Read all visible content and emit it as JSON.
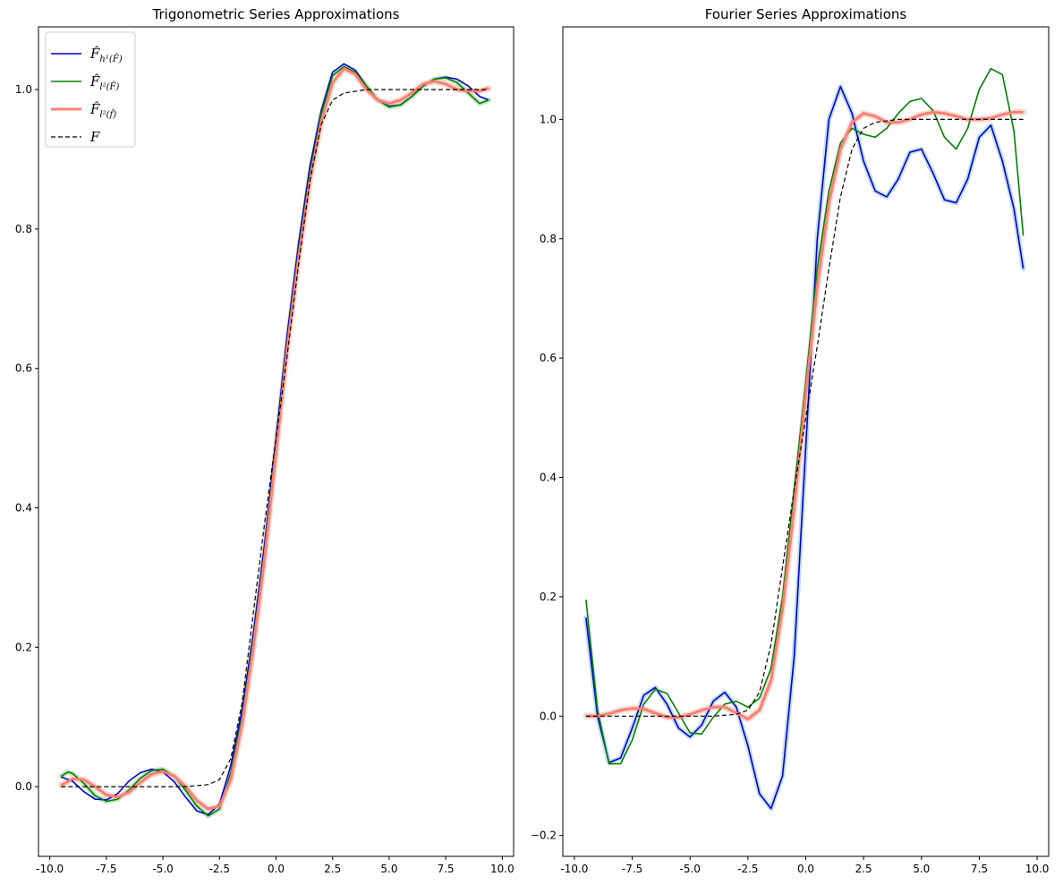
{
  "chart_data": [
    {
      "type": "line",
      "title": "Trigonometric Series Approximations",
      "xlabel": "",
      "ylabel": "",
      "xlim": [
        -10.5,
        10.5
      ],
      "ylim": [
        -0.1,
        1.09
      ],
      "xticks": [
        -10.0,
        -7.5,
        -5.0,
        -2.5,
        0.0,
        2.5,
        5.0,
        7.5,
        10.0
      ],
      "xtick_labels": [
        "-10.0",
        "-7.5",
        "-5.0",
        "-2.5",
        "0.0",
        "2.5",
        "5.0",
        "7.5",
        "10.0"
      ],
      "yticks": [
        0.0,
        0.2,
        0.4,
        0.6,
        0.8,
        1.0
      ],
      "ytick_labels": [
        "0.0",
        "0.2",
        "0.4",
        "0.6",
        "0.8",
        "1.0"
      ],
      "grid": false,
      "legend": "top-left",
      "legend_entries": [
        {
          "main": "F̂",
          "sub": "h¹(F̂)"
        },
        {
          "main": "F̂",
          "sub": "l²(F̂)"
        },
        {
          "main": "F̂",
          "sub": "l²(f̂)"
        },
        {
          "main": "F",
          "sub": ""
        }
      ],
      "series": [
        {
          "color": "#0000cc",
          "width": 1.6,
          "dash": "",
          "band": "",
          "x": [
            -9.5,
            -9,
            -8.5,
            -8,
            -7.5,
            -7,
            -6.5,
            -6,
            -5.5,
            -5,
            -4.5,
            -4,
            -3.5,
            -3,
            -2.5,
            -2,
            -1.5,
            -1,
            -0.5,
            0,
            0.5,
            1,
            1.5,
            2,
            2.5,
            3,
            3.5,
            4,
            4.5,
            5,
            5.5,
            6,
            6.5,
            7,
            7.5,
            8,
            8.5,
            9,
            9.4
          ],
          "y": [
            0.014,
            0.008,
            -0.007,
            -0.018,
            -0.019,
            -0.01,
            0.008,
            0.02,
            0.025,
            0.021,
            0.007,
            -0.015,
            -0.035,
            -0.04,
            -0.025,
            0.03,
            0.11,
            0.22,
            0.35,
            0.5,
            0.65,
            0.78,
            0.89,
            0.97,
            1.025,
            1.037,
            1.028,
            1.005,
            0.985,
            0.976,
            0.978,
            0.99,
            1.005,
            1.015,
            1.018,
            1.015,
            1.005,
            0.99,
            0.985
          ]
        },
        {
          "color": "#008000",
          "width": 1.6,
          "dash": "",
          "band": "#aadcaa",
          "x": [
            -9.5,
            -9.2,
            -9,
            -8.5,
            -8,
            -7.5,
            -7,
            -6.5,
            -6,
            -5.5,
            -5,
            -4.5,
            -4,
            -3.5,
            -3,
            -2.5,
            -2,
            -1.5,
            -1,
            -0.5,
            0,
            0.5,
            1,
            1.5,
            2,
            2.5,
            3,
            3.5,
            4,
            4.5,
            5,
            5.5,
            6,
            6.5,
            7,
            7.5,
            8,
            8.5,
            9,
            9.4
          ],
          "y": [
            0.015,
            0.021,
            0.019,
            0.005,
            -0.013,
            -0.021,
            -0.018,
            -0.005,
            0.012,
            0.023,
            0.025,
            0.015,
            -0.005,
            -0.028,
            -0.042,
            -0.032,
            0.02,
            0.1,
            0.21,
            0.34,
            0.49,
            0.64,
            0.77,
            0.88,
            0.965,
            1.02,
            1.033,
            1.025,
            1.005,
            0.985,
            0.975,
            0.978,
            0.99,
            1.005,
            1.015,
            1.017,
            1.01,
            0.995,
            0.98,
            0.985
          ]
        },
        {
          "color": "#fa8072",
          "width": 3.0,
          "dash": "",
          "band": "#f8c8c0",
          "x": [
            -9.5,
            -9,
            -8.5,
            -8,
            -7.5,
            -7,
            -6.5,
            -6,
            -5.5,
            -5,
            -4.5,
            -4,
            -3.5,
            -3,
            -2.5,
            -2,
            -1.5,
            -1,
            -0.5,
            0,
            0.5,
            1,
            1.5,
            2,
            2.5,
            3,
            3.5,
            4,
            4.5,
            5,
            5.5,
            6,
            6.5,
            7,
            7.5,
            8,
            8.5,
            9,
            9.4
          ],
          "y": [
            0.002,
            0.011,
            0.01,
            0.0,
            -0.012,
            -0.015,
            -0.008,
            0.006,
            0.018,
            0.022,
            0.015,
            0.0,
            -0.02,
            -0.032,
            -0.028,
            0.01,
            0.09,
            0.2,
            0.33,
            0.48,
            0.63,
            0.76,
            0.87,
            0.955,
            1.01,
            1.03,
            1.022,
            1.0,
            0.985,
            0.98,
            0.985,
            0.995,
            1.008,
            1.012,
            1.008,
            1.0,
            0.998,
            0.998,
            1.002
          ]
        },
        {
          "color": "#000000",
          "width": 1.2,
          "dash": "5,3",
          "band": "",
          "x": [
            -9.5,
            -8,
            -6,
            -4,
            -3,
            -2.5,
            -2,
            -1.5,
            -1,
            -0.5,
            0,
            0.5,
            1,
            1.5,
            2,
            2.5,
            3,
            4,
            6,
            8,
            9.4
          ],
          "y": [
            0.0,
            0.0,
            0.0,
            0.0,
            0.003,
            0.01,
            0.04,
            0.12,
            0.25,
            0.38,
            0.5,
            0.62,
            0.75,
            0.87,
            0.95,
            0.985,
            0.995,
            1.0,
            1.0,
            1.0,
            1.0
          ]
        }
      ]
    },
    {
      "type": "line",
      "title": "Fourier Series Approximations",
      "xlabel": "",
      "ylabel": "",
      "xlim": [
        -10.5,
        10.5
      ],
      "ylim": [
        -0.235,
        1.155
      ],
      "xticks": [
        -10.0,
        -7.5,
        -5.0,
        -2.5,
        0.0,
        2.5,
        5.0,
        7.5,
        10.0
      ],
      "xtick_labels": [
        "-10.0",
        "-7.5",
        "-5.0",
        "-2.5",
        "0.0",
        "2.5",
        "5.0",
        "7.5",
        "10.0"
      ],
      "yticks": [
        -0.2,
        0.0,
        0.2,
        0.4,
        0.6,
        0.8,
        1.0
      ],
      "ytick_labels": [
        "−0.2",
        "0.0",
        "0.2",
        "0.4",
        "0.6",
        "0.8",
        "1.0"
      ],
      "grid": false,
      "legend": "none",
      "series": [
        {
          "color": "#0000cc",
          "width": 1.6,
          "dash": "",
          "band": "#a8d0e8",
          "x": [
            -9.5,
            -9,
            -8.5,
            -8,
            -7.5,
            -7,
            -6.5,
            -6,
            -5.5,
            -5,
            -4.5,
            -4,
            -3.5,
            -3,
            -2.5,
            -2,
            -1.5,
            -1,
            -0.5,
            0,
            0.5,
            1,
            1.5,
            2,
            2.5,
            3,
            3.5,
            4,
            4.5,
            5,
            5.5,
            6,
            6.5,
            7,
            7.5,
            8,
            8.5,
            9,
            9.4
          ],
          "y": [
            0.165,
            0.0,
            -0.078,
            -0.07,
            -0.02,
            0.035,
            0.048,
            0.02,
            -0.02,
            -0.035,
            -0.015,
            0.025,
            0.04,
            0.015,
            -0.05,
            -0.13,
            -0.155,
            -0.1,
            0.1,
            0.45,
            0.8,
            1.0,
            1.055,
            1.01,
            0.93,
            0.88,
            0.87,
            0.9,
            0.945,
            0.95,
            0.91,
            0.865,
            0.86,
            0.9,
            0.97,
            0.99,
            0.93,
            0.85,
            0.75
          ]
        },
        {
          "color": "#008000",
          "width": 1.6,
          "dash": "",
          "band": "",
          "x": [
            -9.5,
            -9,
            -8.5,
            -8,
            -7.5,
            -7,
            -6.5,
            -6,
            -5.5,
            -5,
            -4.5,
            -4,
            -3.5,
            -3,
            -2.5,
            -2,
            -1.5,
            -1,
            -0.5,
            0,
            0.5,
            1,
            1.5,
            2,
            2.5,
            3,
            3.5,
            4,
            4.5,
            5,
            5.5,
            6,
            6.5,
            7,
            7.5,
            8,
            8.5,
            9,
            9.4
          ],
          "y": [
            0.195,
            0.01,
            -0.08,
            -0.08,
            -0.04,
            0.02,
            0.045,
            0.038,
            0.005,
            -0.028,
            -0.03,
            -0.002,
            0.02,
            0.025,
            0.015,
            0.03,
            0.08,
            0.2,
            0.38,
            0.56,
            0.75,
            0.88,
            0.96,
            0.985,
            0.975,
            0.97,
            0.985,
            1.01,
            1.03,
            1.035,
            1.015,
            0.97,
            0.95,
            0.985,
            1.05,
            1.085,
            1.075,
            0.98,
            0.805
          ]
        },
        {
          "color": "#fa8072",
          "width": 3.0,
          "dash": "",
          "band": "#f8c8c0",
          "x": [
            -9.5,
            -9,
            -8.5,
            -8,
            -7.5,
            -7,
            -6.5,
            -6,
            -5.5,
            -5,
            -4.5,
            -4,
            -3.5,
            -3,
            -2.5,
            -2,
            -1.5,
            -1,
            -0.5,
            0,
            0.5,
            1,
            1.5,
            2,
            2.5,
            3,
            3.5,
            4,
            4.5,
            5,
            5.5,
            6,
            6.5,
            7,
            7.5,
            8,
            8.5,
            9,
            9.4
          ],
          "y": [
            0.0,
            0.0,
            0.004,
            0.01,
            0.013,
            0.012,
            0.005,
            -0.002,
            -0.002,
            0.003,
            0.01,
            0.015,
            0.015,
            0.005,
            -0.005,
            0.01,
            0.06,
            0.18,
            0.35,
            0.54,
            0.72,
            0.86,
            0.95,
            0.995,
            1.01,
            1.005,
            0.995,
            0.995,
            1.0,
            1.008,
            1.012,
            1.01,
            1.005,
            1.0,
            1.0,
            1.002,
            1.008,
            1.012,
            1.012
          ]
        },
        {
          "color": "#000000",
          "width": 1.2,
          "dash": "5,3",
          "band": "",
          "x": [
            -9.5,
            -8,
            -6,
            -4,
            -3,
            -2.5,
            -2,
            -1.5,
            -1,
            -0.5,
            0,
            0.5,
            1,
            1.5,
            2,
            2.5,
            3,
            4,
            6,
            8,
            9.4
          ],
          "y": [
            0.0,
            0.0,
            0.0,
            0.0,
            0.003,
            0.01,
            0.04,
            0.12,
            0.25,
            0.38,
            0.5,
            0.62,
            0.75,
            0.87,
            0.95,
            0.985,
            0.995,
            1.0,
            1.0,
            1.0,
            1.0
          ]
        }
      ]
    }
  ]
}
